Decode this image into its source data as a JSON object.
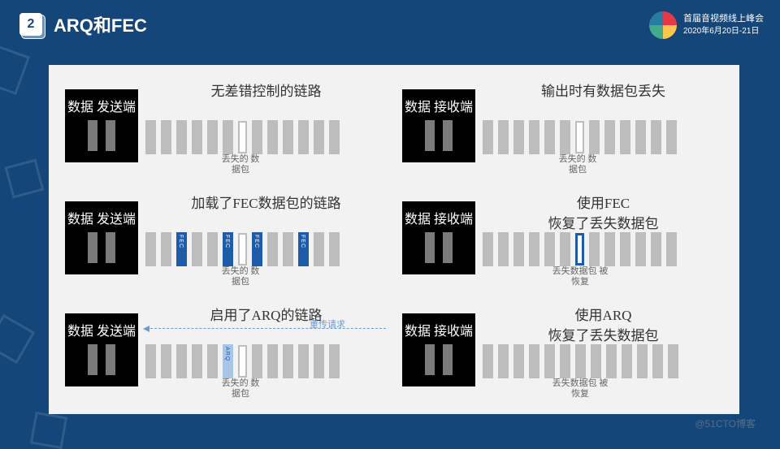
{
  "header": {
    "section_number": "2",
    "title": "ARQ和FEC"
  },
  "logo": {
    "title": "首届音视频线上峰会",
    "date": "2020年6月20日-21日"
  },
  "endpoints": {
    "sender": "数据\n发送端",
    "receiver": "数据\n接收端"
  },
  "labels": {
    "lost_packet": "丢失的\n数据包",
    "recovered": "丢失数据包\n被恢复",
    "retransmit": "重传请求"
  },
  "rows": [
    {
      "left_title": "无差错控制的链路",
      "right_title": "输出时有数据包丢失",
      "left_packets": [
        "n",
        "n",
        "n",
        "n",
        "n",
        "n",
        "lost",
        "n",
        "n",
        "n",
        "n",
        "n",
        "n"
      ],
      "right_packets": [
        "n",
        "n",
        "n",
        "n",
        "n",
        "n",
        "lost",
        "n",
        "n",
        "n",
        "n",
        "n",
        "n"
      ],
      "left_lost_idx": 6,
      "right_lost_idx": 6
    },
    {
      "left_title": "加载了FEC数据包的链路",
      "right_title": "使用FEC\n恢复了丢失数据包",
      "left_packets": [
        "n",
        "n",
        "fec",
        "n",
        "n",
        "fec",
        "lost",
        "fec",
        "n",
        "n",
        "fec",
        "n",
        "n"
      ],
      "right_packets": [
        "n",
        "n",
        "n",
        "n",
        "n",
        "n",
        "rfec",
        "n",
        "n",
        "n",
        "n",
        "n",
        "n"
      ],
      "left_lost_idx": 6,
      "right_recovered_idx": 6
    },
    {
      "left_title": "启用了ARQ的链路",
      "right_title": "使用ARQ\n恢复了丢失数据包",
      "left_packets": [
        "n",
        "n",
        "n",
        "n",
        "n",
        "arq",
        "lost",
        "n",
        "n",
        "n",
        "n",
        "n",
        "n"
      ],
      "right_packets": [
        "n",
        "n",
        "n",
        "n",
        "n",
        "n",
        "n",
        "n",
        "n",
        "n",
        "n",
        "n",
        "n"
      ],
      "left_lost_idx": 6,
      "right_recovered_idx": 6,
      "has_arrow": true
    }
  ],
  "colors": {
    "page_bg": "#14467a",
    "diagram_bg": "#f2f2f2",
    "endpoint_bg": "#000000",
    "packet_normal": "#bdbdbd",
    "packet_fec": "#1e5caa",
    "packet_arq": "#a8c5e6",
    "packet_lost_border": "#bdbdbd",
    "packet_recovered_border": "#1e5caa",
    "arrow": "#6b9bd1",
    "text_primary": "#333333",
    "text_secondary": "#666666"
  },
  "watermark": "@51CTO博客"
}
